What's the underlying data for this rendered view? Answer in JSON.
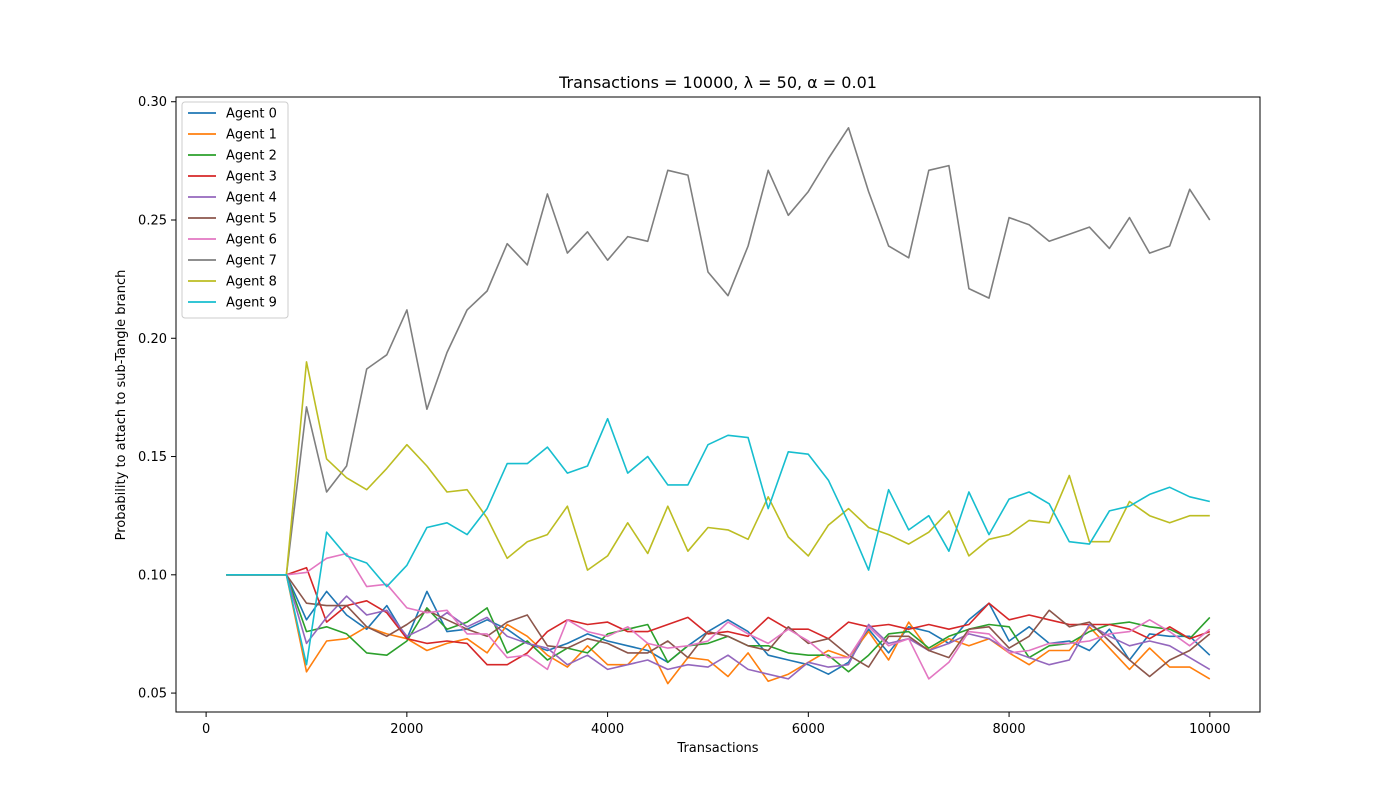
{
  "chart_data": {
    "type": "line",
    "title": "Transactions = 10000,  λ = 50,  α = 0.01",
    "xlabel": "Transactions",
    "ylabel": "Probability to attach to sub-Tangle branch",
    "xlim": [
      -300,
      10500
    ],
    "ylim": [
      0.042,
      0.302
    ],
    "xticks": [
      0,
      2000,
      4000,
      6000,
      8000,
      10000
    ],
    "yticks": [
      0.05,
      0.1,
      0.15,
      0.2,
      0.25,
      0.3
    ],
    "ytick_labels": [
      "0.05",
      "0.10",
      "0.15",
      "0.20",
      "0.25",
      "0.30"
    ],
    "legend_position": "top-left",
    "grid": false,
    "x": [
      200,
      400,
      600,
      800,
      1000,
      1200,
      1400,
      1600,
      1800,
      2000,
      2200,
      2400,
      2600,
      2800,
      3000,
      3200,
      3400,
      3600,
      3800,
      4000,
      4200,
      4400,
      4600,
      4800,
      5000,
      5200,
      5400,
      5600,
      5800,
      6000,
      6200,
      6400,
      6600,
      6800,
      7000,
      7200,
      7400,
      7600,
      7800,
      8000,
      8200,
      8400,
      8600,
      8800,
      9000,
      9200,
      9400,
      9600,
      9800,
      10000
    ],
    "series": [
      {
        "name": "Agent 0",
        "color": "#1f77b4",
        "values": [
          0.1,
          0.1,
          0.1,
          0.1,
          0.081,
          0.093,
          0.083,
          0.077,
          0.087,
          0.073,
          0.093,
          0.076,
          0.077,
          0.081,
          0.077,
          0.071,
          0.068,
          0.071,
          0.075,
          0.072,
          0.07,
          0.068,
          0.063,
          0.07,
          0.076,
          0.081,
          0.076,
          0.066,
          0.064,
          0.062,
          0.058,
          0.063,
          0.077,
          0.067,
          0.078,
          0.076,
          0.071,
          0.081,
          0.088,
          0.072,
          0.078,
          0.071,
          0.072,
          0.068,
          0.077,
          0.064,
          0.075,
          0.074,
          0.074,
          0.066
        ]
      },
      {
        "name": "Agent 1",
        "color": "#ff7f0e",
        "values": [
          0.1,
          0.1,
          0.1,
          0.1,
          0.059,
          0.072,
          0.073,
          0.078,
          0.075,
          0.073,
          0.068,
          0.071,
          0.073,
          0.067,
          0.079,
          0.074,
          0.066,
          0.061,
          0.07,
          0.062,
          0.062,
          0.071,
          0.054,
          0.065,
          0.064,
          0.057,
          0.067,
          0.055,
          0.058,
          0.063,
          0.068,
          0.065,
          0.076,
          0.064,
          0.08,
          0.068,
          0.073,
          0.07,
          0.073,
          0.067,
          0.062,
          0.068,
          0.068,
          0.078,
          0.069,
          0.06,
          0.069,
          0.061,
          0.061,
          0.056
        ]
      },
      {
        "name": "Agent 2",
        "color": "#2ca02c",
        "values": [
          0.1,
          0.1,
          0.1,
          0.1,
          0.076,
          0.078,
          0.075,
          0.067,
          0.066,
          0.072,
          0.086,
          0.077,
          0.08,
          0.086,
          0.067,
          0.072,
          0.064,
          0.069,
          0.067,
          0.075,
          0.077,
          0.079,
          0.063,
          0.07,
          0.071,
          0.074,
          0.07,
          0.07,
          0.067,
          0.066,
          0.066,
          0.059,
          0.066,
          0.075,
          0.076,
          0.069,
          0.074,
          0.077,
          0.079,
          0.078,
          0.065,
          0.07,
          0.071,
          0.076,
          0.079,
          0.08,
          0.078,
          0.077,
          0.073,
          0.082
        ]
      },
      {
        "name": "Agent 3",
        "color": "#d62728",
        "values": [
          0.1,
          0.1,
          0.1,
          0.1,
          0.103,
          0.08,
          0.087,
          0.089,
          0.084,
          0.073,
          0.071,
          0.072,
          0.071,
          0.062,
          0.062,
          0.067,
          0.076,
          0.081,
          0.079,
          0.08,
          0.076,
          0.076,
          0.079,
          0.082,
          0.075,
          0.076,
          0.074,
          0.082,
          0.077,
          0.077,
          0.073,
          0.08,
          0.078,
          0.079,
          0.077,
          0.079,
          0.077,
          0.079,
          0.088,
          0.081,
          0.083,
          0.081,
          0.079,
          0.079,
          0.079,
          0.077,
          0.073,
          0.078,
          0.073,
          0.076
        ]
      },
      {
        "name": "Agent 4",
        "color": "#9467bd",
        "values": [
          0.1,
          0.1,
          0.1,
          0.1,
          0.071,
          0.082,
          0.091,
          0.083,
          0.085,
          0.074,
          0.078,
          0.084,
          0.078,
          0.082,
          0.074,
          0.071,
          0.069,
          0.062,
          0.066,
          0.06,
          0.062,
          0.064,
          0.06,
          0.062,
          0.061,
          0.066,
          0.06,
          0.058,
          0.056,
          0.063,
          0.061,
          0.062,
          0.079,
          0.071,
          0.073,
          0.068,
          0.071,
          0.075,
          0.073,
          0.068,
          0.065,
          0.062,
          0.064,
          0.079,
          0.074,
          0.07,
          0.072,
          0.07,
          0.065,
          0.06
        ]
      },
      {
        "name": "Agent 5",
        "color": "#8c564b",
        "values": [
          0.1,
          0.1,
          0.1,
          0.1,
          0.088,
          0.087,
          0.087,
          0.078,
          0.074,
          0.079,
          0.085,
          0.081,
          0.077,
          0.074,
          0.08,
          0.083,
          0.07,
          0.069,
          0.073,
          0.071,
          0.067,
          0.067,
          0.072,
          0.065,
          0.076,
          0.074,
          0.07,
          0.068,
          0.078,
          0.071,
          0.073,
          0.066,
          0.061,
          0.074,
          0.074,
          0.068,
          0.065,
          0.077,
          0.078,
          0.069,
          0.074,
          0.085,
          0.078,
          0.08,
          0.072,
          0.064,
          0.057,
          0.064,
          0.068,
          0.075
        ]
      },
      {
        "name": "Agent 6",
        "color": "#e377c2",
        "values": [
          0.1,
          0.1,
          0.1,
          0.1,
          0.101,
          0.107,
          0.109,
          0.095,
          0.096,
          0.086,
          0.084,
          0.085,
          0.075,
          0.075,
          0.065,
          0.066,
          0.06,
          0.081,
          0.076,
          0.074,
          0.078,
          0.071,
          0.069,
          0.07,
          0.072,
          0.08,
          0.075,
          0.071,
          0.077,
          0.072,
          0.065,
          0.065,
          0.078,
          0.07,
          0.073,
          0.056,
          0.063,
          0.076,
          0.075,
          0.067,
          0.068,
          0.071,
          0.071,
          0.072,
          0.075,
          0.076,
          0.081,
          0.076,
          0.07,
          0.077
        ]
      },
      {
        "name": "Agent 7",
        "color": "#7f7f7f",
        "values": [
          0.1,
          0.1,
          0.1,
          0.1,
          0.171,
          0.135,
          0.146,
          0.187,
          0.193,
          0.212,
          0.17,
          0.194,
          0.212,
          0.22,
          0.24,
          0.231,
          0.261,
          0.236,
          0.245,
          0.233,
          0.243,
          0.241,
          0.271,
          0.269,
          0.228,
          0.218,
          0.239,
          0.271,
          0.252,
          0.262,
          0.276,
          0.289,
          0.262,
          0.239,
          0.234,
          0.271,
          0.273,
          0.221,
          0.217,
          0.251,
          0.248,
          0.241,
          0.244,
          0.247,
          0.238,
          0.251,
          0.236,
          0.239,
          0.263,
          0.25
        ]
      },
      {
        "name": "Agent 8",
        "color": "#bcbd22",
        "values": [
          0.1,
          0.1,
          0.1,
          0.1,
          0.19,
          0.149,
          0.141,
          0.136,
          0.145,
          0.155,
          0.146,
          0.135,
          0.136,
          0.124,
          0.107,
          0.114,
          0.117,
          0.129,
          0.102,
          0.108,
          0.122,
          0.109,
          0.129,
          0.11,
          0.12,
          0.119,
          0.115,
          0.133,
          0.116,
          0.108,
          0.121,
          0.128,
          0.12,
          0.117,
          0.113,
          0.118,
          0.127,
          0.108,
          0.115,
          0.117,
          0.123,
          0.122,
          0.142,
          0.114,
          0.114,
          0.131,
          0.125,
          0.122,
          0.125,
          0.125
        ]
      },
      {
        "name": "Agent 9",
        "color": "#17becf",
        "values": [
          0.1,
          0.1,
          0.1,
          0.1,
          0.062,
          0.118,
          0.108,
          0.105,
          0.095,
          0.104,
          0.12,
          0.122,
          0.117,
          0.128,
          0.147,
          0.147,
          0.154,
          0.143,
          0.146,
          0.166,
          0.143,
          0.15,
          0.138,
          0.138,
          0.155,
          0.159,
          0.158,
          0.128,
          0.152,
          0.151,
          0.14,
          0.122,
          0.102,
          0.136,
          0.119,
          0.125,
          0.11,
          0.135,
          0.117,
          0.132,
          0.135,
          0.13,
          0.114,
          0.113,
          0.127,
          0.129,
          0.134,
          0.137,
          0.133,
          0.131
        ]
      }
    ]
  }
}
